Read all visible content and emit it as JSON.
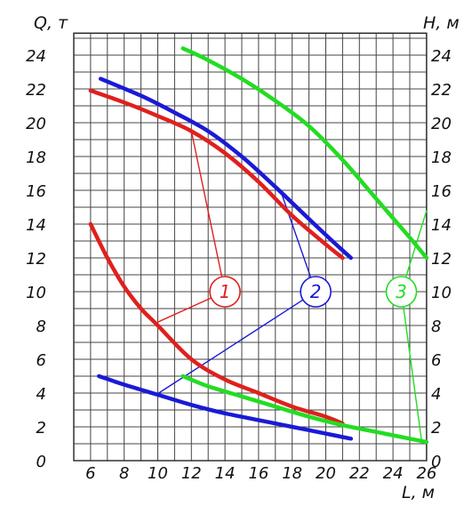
{
  "chart_data": {
    "type": "line",
    "axes": {
      "left": {
        "label": "Q, т",
        "range": [
          0,
          24
        ],
        "ticks": [
          "0",
          "2",
          "4",
          "6",
          "8",
          "10",
          "12",
          "14",
          "16",
          "18",
          "20",
          "22",
          "24"
        ]
      },
      "right": {
        "label": "H, м",
        "range": [
          0,
          24
        ],
        "ticks": [
          "0",
          "2",
          "4",
          "6",
          "8",
          "10",
          "12",
          "14",
          "16",
          "18",
          "20",
          "22",
          "24"
        ]
      },
      "bottom": {
        "label": "L, м",
        "range": [
          5,
          26
        ],
        "ticks": [
          "6",
          "8",
          "10",
          "12",
          "14",
          "16",
          "18",
          "20",
          "22",
          "24",
          "26"
        ]
      }
    },
    "grid": true,
    "grid_x": [
      5,
      26,
      1
    ],
    "grid_y": [
      0,
      25.3,
      1
    ],
    "series": [
      {
        "label": "1",
        "color": "#e0201e",
        "curves": [
          {
            "axis": "right",
            "points": [
              [
                6,
                21.9
              ],
              [
                8,
                21.2
              ],
              [
                10,
                20.4
              ],
              [
                12,
                19.5
              ],
              [
                14,
                18.2
              ],
              [
                16,
                16.5
              ],
              [
                18,
                14.5
              ],
              [
                20,
                12.8
              ],
              [
                21,
                12
              ]
            ]
          },
          {
            "axis": "left",
            "points": [
              [
                6,
                14
              ],
              [
                7,
                12
              ],
              [
                8,
                10.3
              ],
              [
                9,
                9
              ],
              [
                10,
                8
              ],
              [
                12,
                6
              ],
              [
                14,
                4.8
              ],
              [
                16,
                4
              ],
              [
                18,
                3.2
              ],
              [
                20,
                2.6
              ],
              [
                21,
                2.2
              ]
            ]
          }
        ]
      },
      {
        "label": "2",
        "color": "#1a1ad6",
        "curves": [
          {
            "axis": "right",
            "points": [
              [
                6.6,
                22.6
              ],
              [
                9,
                21.6
              ],
              [
                11,
                20.6
              ],
              [
                13,
                19.5
              ],
              [
                15,
                18
              ],
              [
                17,
                16.2
              ],
              [
                19,
                14.3
              ],
              [
                20.5,
                12.9
              ],
              [
                21.5,
                12
              ]
            ]
          },
          {
            "axis": "left",
            "points": [
              [
                6.5,
                5
              ],
              [
                8,
                4.5
              ],
              [
                10,
                3.9
              ],
              [
                12,
                3.3
              ],
              [
                14,
                2.8
              ],
              [
                16,
                2.4
              ],
              [
                18,
                2
              ],
              [
                20,
                1.6
              ],
              [
                21.5,
                1.3
              ]
            ]
          }
        ]
      },
      {
        "label": "3",
        "color": "#22dd22",
        "curves": [
          {
            "axis": "right",
            "points": [
              [
                11.5,
                24.4
              ],
              [
                13,
                23.7
              ],
              [
                15,
                22.6
              ],
              [
                17,
                21.3
              ],
              [
                19,
                19.8
              ],
              [
                21,
                17.8
              ],
              [
                23,
                15.5
              ],
              [
                25,
                13.2
              ],
              [
                26,
                12
              ]
            ]
          },
          {
            "axis": "left",
            "points": [
              [
                11.5,
                5
              ],
              [
                13,
                4.4
              ],
              [
                15,
                3.8
              ],
              [
                17,
                3.2
              ],
              [
                19,
                2.6
              ],
              [
                21,
                2.1
              ],
              [
                23,
                1.7
              ],
              [
                25,
                1.3
              ],
              [
                26,
                1.1
              ]
            ]
          }
        ]
      }
    ],
    "callouts": [
      {
        "label": "1",
        "color": "#e0201e",
        "at": [
          14,
          10
        ],
        "leaders_to": [
          [
            12,
            19.5
          ],
          [
            10,
            8.2
          ]
        ]
      },
      {
        "label": "2",
        "color": "#1a1ad6",
        "at": [
          19.4,
          10
        ],
        "leaders_to": [
          [
            17.3,
            16
          ],
          [
            9.9,
            3.9
          ]
        ]
      },
      {
        "label": "3",
        "color": "#22dd22",
        "at": [
          24.5,
          10
        ],
        "leaders_to": [
          [
            26,
            14.8
          ],
          [
            25.7,
            1.2
          ]
        ]
      }
    ]
  }
}
